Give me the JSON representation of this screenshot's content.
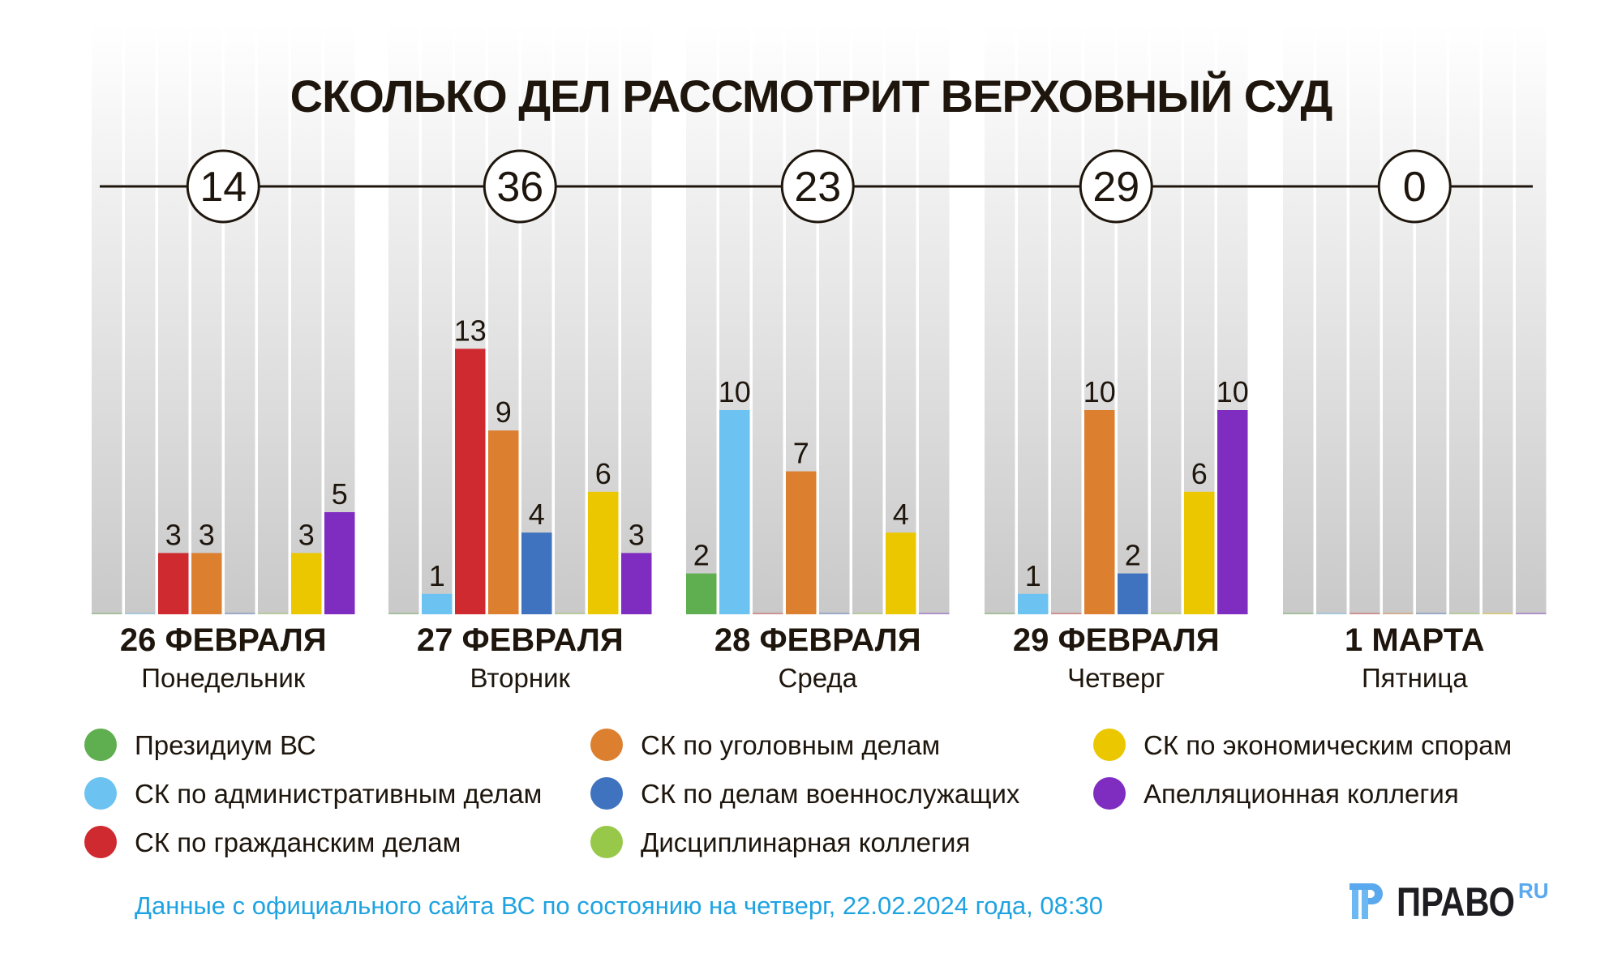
{
  "chart_data": {
    "type": "bar",
    "title": "СКОЛЬКО ДЕЛ РАССМОТРИТ ВЕРХОВНЫЙ СУД",
    "xlabel": "",
    "ylabel": "",
    "ylim": [
      0,
      22
    ],
    "grid": false,
    "legend_position": "bottom",
    "categories": [
      {
        "date": "26 ФЕВРАЛЯ",
        "weekday": "Понедельник",
        "total": "14"
      },
      {
        "date": "27 ФЕВРАЛЯ",
        "weekday": "Вторник",
        "total": "36"
      },
      {
        "date": "28 ФЕВРАЛЯ",
        "weekday": "Среда",
        "total": "23"
      },
      {
        "date": "29 ФЕВРАЛЯ",
        "weekday": "Четверг",
        "total": "29"
      },
      {
        "date": "1 МАРТА",
        "weekday": "Пятница",
        "total": "0"
      }
    ],
    "series": [
      {
        "name": "Президиум ВС",
        "color": "#5fae4f",
        "values": [
          0,
          0,
          2,
          0,
          0
        ]
      },
      {
        "name": "СК по административным делам",
        "color": "#6cc2f0",
        "values": [
          0,
          1,
          10,
          1,
          0
        ]
      },
      {
        "name": "СК по гражданским делам",
        "color": "#d02a31",
        "values": [
          3,
          13,
          0,
          0,
          0
        ]
      },
      {
        "name": "СК по уголовным делам",
        "color": "#dc7f2f",
        "values": [
          3,
          9,
          7,
          10,
          0
        ]
      },
      {
        "name": "СК по делам военнослужащих",
        "color": "#3f72bf",
        "values": [
          0,
          4,
          0,
          2,
          0
        ]
      },
      {
        "name": "Дисциплинарная коллегия",
        "color": "#98c84a",
        "values": [
          0,
          0,
          0,
          0,
          0
        ]
      },
      {
        "name": "СК по экономическим спорам",
        "color": "#ebc700",
        "values": [
          3,
          6,
          4,
          6,
          0
        ]
      },
      {
        "name": "Апелляционная коллегия",
        "color": "#7f2cc1",
        "values": [
          5,
          3,
          0,
          10,
          0
        ]
      }
    ],
    "legend_order": [
      0,
      1,
      2,
      3,
      4,
      5,
      6,
      7
    ]
  },
  "footer": {
    "source": "Данные с официального сайта ВС по состоянию на четверг, 22.02.2024 года, 08:30",
    "logo_text": "ПРАВО",
    "logo_suffix": "RU",
    "logo_icon": "pravo-logo-icon"
  }
}
